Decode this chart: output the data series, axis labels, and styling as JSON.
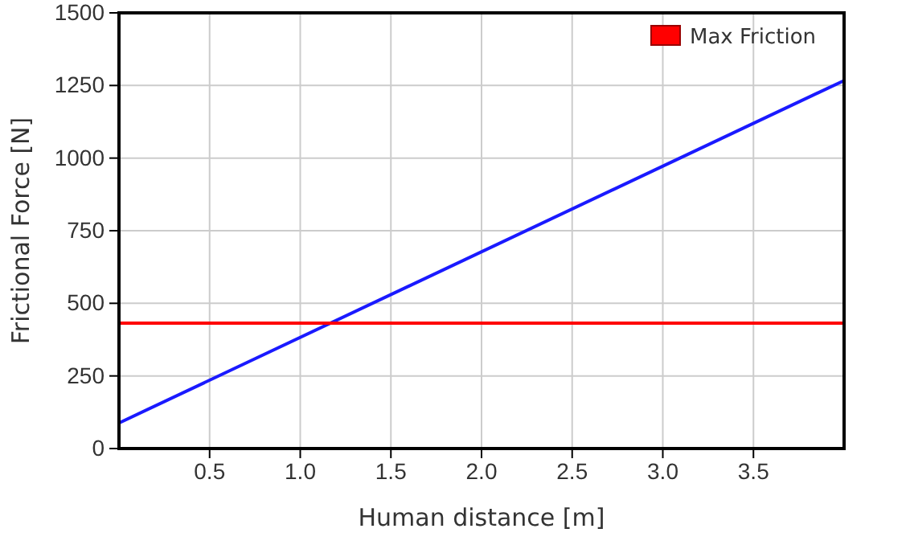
{
  "chart_data": {
    "type": "line",
    "xlabel": "Human distance [m]",
    "ylabel": "Frictional Force [N]",
    "xlim": [
      0,
      4
    ],
    "xticks": [
      0.5,
      {
        "value": 1,
        "label": "1.0"
      },
      1.5,
      {
        "value": 2,
        "label": "2.0"
      },
      2.5,
      {
        "value": 3,
        "label": "3.0"
      },
      3.5
    ],
    "x": [
      0,
      4
    ],
    "ylim": [
      0,
      1500
    ],
    "yticks": [
      0,
      250,
      500,
      750,
      1000,
      1250,
      1500
    ],
    "grid": true,
    "legend": "top right",
    "marker": "none",
    "line_style": "solid",
    "series": [
      {
        "color": "#1a1aff",
        "values": [
          88,
          1267
        ]
      },
      {
        "name": "Max Friction",
        "color": "#ff0000",
        "values": [
          432,
          432
        ]
      }
    ]
  }
}
